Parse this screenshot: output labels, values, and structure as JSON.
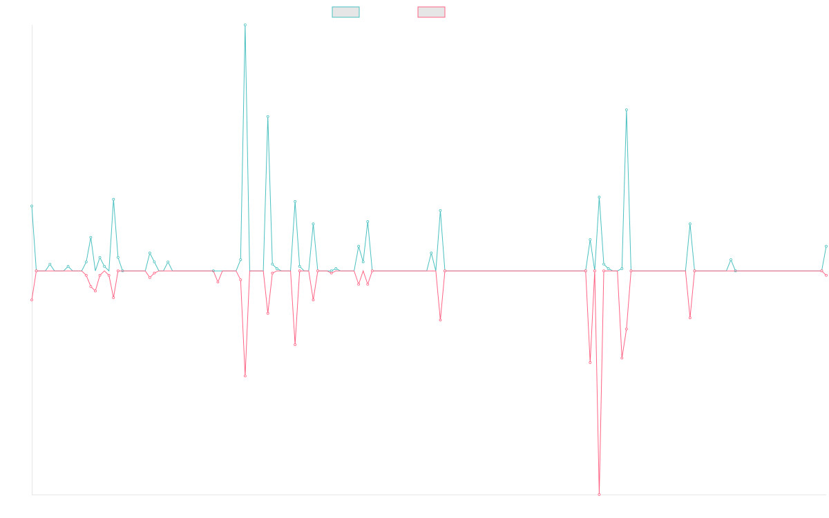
{
  "colors": {
    "series_a": "#4bc0c0",
    "series_b": "#ff6384",
    "legend_fill": "#e6e6e6",
    "axis": "#e6e6e6"
  },
  "chart_data": {
    "type": "line",
    "title": "",
    "xlabel": "",
    "ylabel": "",
    "legend_position": "top",
    "grid": false,
    "ylim": [
      -100,
      110
    ],
    "xlim": [
      0,
      175
    ],
    "series": [
      {
        "values": [
          [
            0,
            29
          ],
          [
            1,
            0
          ],
          [
            4,
            3
          ],
          [
            8,
            2
          ],
          [
            12,
            4
          ],
          [
            13,
            15
          ],
          [
            15,
            6
          ],
          [
            16,
            2
          ],
          [
            18,
            32
          ],
          [
            19,
            6
          ],
          [
            20,
            0
          ],
          [
            26,
            8
          ],
          [
            27,
            4
          ],
          [
            30,
            4
          ],
          [
            40,
            0
          ],
          [
            46,
            5
          ],
          [
            47,
            110
          ],
          [
            52,
            69
          ],
          [
            53,
            3
          ],
          [
            54,
            1
          ],
          [
            58,
            31
          ],
          [
            59,
            2
          ],
          [
            62,
            21
          ],
          [
            66,
            0
          ],
          [
            67,
            1
          ],
          [
            72,
            11
          ],
          [
            73,
            4
          ],
          [
            74,
            22
          ],
          [
            88,
            8
          ],
          [
            90,
            27
          ],
          [
            91,
            0
          ],
          [
            122,
            0
          ],
          [
            123,
            14
          ],
          [
            125,
            33
          ],
          [
            126,
            3
          ],
          [
            127,
            1
          ],
          [
            130,
            1
          ],
          [
            131,
            72
          ],
          [
            145,
            21
          ],
          [
            146,
            0
          ],
          [
            154,
            5
          ],
          [
            155,
            0
          ],
          [
            174,
            0
          ],
          [
            175,
            11
          ]
        ]
      },
      {
        "values": [
          [
            0,
            -13
          ],
          [
            1,
            0
          ],
          [
            12,
            -2
          ],
          [
            13,
            -7
          ],
          [
            14,
            -9
          ],
          [
            15,
            -2
          ],
          [
            17,
            -2
          ],
          [
            18,
            -12
          ],
          [
            19,
            0
          ],
          [
            26,
            -3
          ],
          [
            27,
            -1
          ],
          [
            41,
            -5
          ],
          [
            46,
            -4
          ],
          [
            47,
            -47
          ],
          [
            52,
            -19
          ],
          [
            53,
            -1
          ],
          [
            58,
            -33
          ],
          [
            59,
            0
          ],
          [
            62,
            -13
          ],
          [
            63,
            0
          ],
          [
            66,
            -1
          ],
          [
            72,
            -6
          ],
          [
            74,
            -6
          ],
          [
            75,
            0
          ],
          [
            90,
            -22
          ],
          [
            91,
            0
          ],
          [
            122,
            0
          ],
          [
            123,
            -41
          ],
          [
            124,
            0
          ],
          [
            125,
            -100
          ],
          [
            126,
            0
          ],
          [
            130,
            -39
          ],
          [
            131,
            -26
          ],
          [
            132,
            0
          ],
          [
            145,
            -21
          ],
          [
            146,
            0
          ],
          [
            174,
            0
          ],
          [
            175,
            -2
          ]
        ]
      }
    ]
  }
}
